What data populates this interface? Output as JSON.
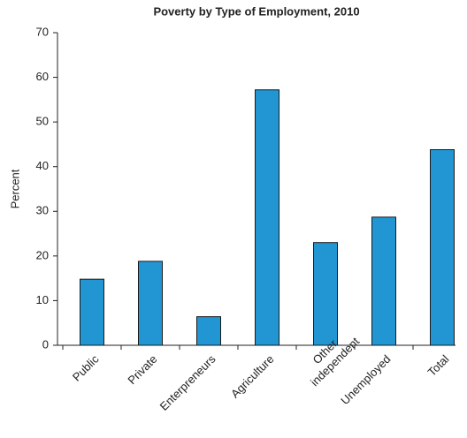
{
  "chart_data": {
    "type": "bar",
    "title": "Poverty by Type of Employment, 2010",
    "y_label": "Percent",
    "categories": [
      "Public",
      "Private",
      "Enterpreneurs",
      "Agriculture",
      "Other independent",
      "Unemployed",
      "Total"
    ],
    "values": [
      14.8,
      18.8,
      6.4,
      57.2,
      23,
      28.7,
      43.8
    ],
    "color": "#2196d3",
    "ylim": [
      0,
      70
    ],
    "yticks": [
      0,
      10,
      20,
      30,
      40,
      50,
      60,
      70
    ],
    "grid": false
  }
}
